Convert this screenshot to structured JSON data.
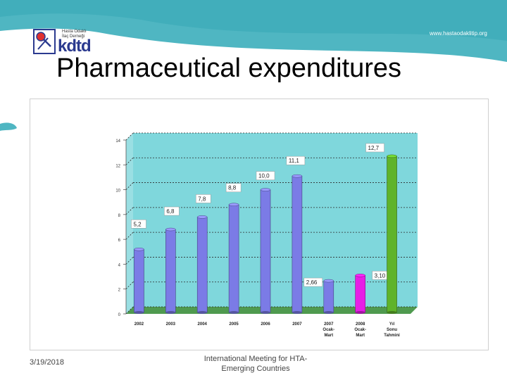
{
  "header": {
    "logo_small_line1": "Hasta Odaklı",
    "logo_small_line2": "İlaç Derneği",
    "logo_word": "kdtd",
    "url": "www.hastaodaklitip.org"
  },
  "slide_title": "Pharmaceutical expenditures",
  "footer": {
    "date": "3/19/2018",
    "text_line1": "International Meeting for HTA-",
    "text_line2": "Emerging Countries"
  },
  "colors": {
    "band": "#4fb6c2",
    "plot_bg": "#7fd7dc",
    "wall": "#9adfe3",
    "floor": "#4f9a4f",
    "bar_default": "#7b7be6",
    "bar_highlight": "#e61ee6",
    "bar_estimate": "#5fb32a"
  },
  "chart_data": {
    "type": "bar",
    "title": "",
    "xlabel": "",
    "ylabel": "",
    "ylim": [
      0,
      14
    ],
    "yticks": [
      "0",
      "2",
      "4",
      "6",
      "8",
      "10",
      "12",
      "14"
    ],
    "grid": true,
    "categories": [
      [
        "2002"
      ],
      [
        "2003"
      ],
      [
        "2004"
      ],
      [
        "2005"
      ],
      [
        "2006"
      ],
      [
        "2007"
      ],
      [
        "2007",
        "Ocak-",
        "Mart"
      ],
      [
        "2008",
        "Ocak-",
        "Mart"
      ],
      [
        "Yıl",
        "Sonu",
        "Tahmini"
      ]
    ],
    "values": [
      5.2,
      6.8,
      7.8,
      8.8,
      10.0,
      11.1,
      2.66,
      3.1,
      12.7
    ],
    "value_labels": [
      "5,2",
      "6,8",
      "7,8",
      "8,8",
      "10,0",
      "11,1",
      "2,66",
      "3,10",
      "12,7"
    ],
    "bar_colors": [
      "default",
      "default",
      "default",
      "default",
      "default",
      "default",
      "default",
      "highlight",
      "estimate"
    ]
  }
}
